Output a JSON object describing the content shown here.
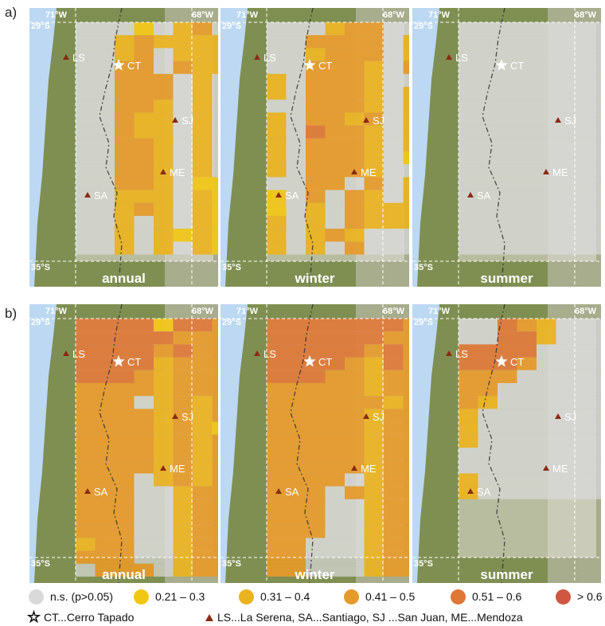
{
  "rows": [
    {
      "label": "a)",
      "panels": [
        {
          "season": "annual",
          "cells": [
            "...2.34...",
            "..343333..",
            "..34.333..",
            "..44.433..",
            "..444.3...",
            "..444.3...",
            "..443.3...",
            "..433.3...",
            "..433.3...",
            "..443.3...",
            "..443.3...",
            "..443.3...",
            "..443.22..",
            "..333.322.",
            "..343.3222",
            "..3.3.3222",
            "..3.323222",
            "..3.3.3222"
          ]
        },
        {
          "season": "winter",
          "cells": [
            "...344....",
            "..4444.3..",
            "..3444.3..",
            "..4443.4..",
            "3.4443....",
            "3.4443.3..",
            "..4443.3..",
            "3.4434.3..",
            "3.5443.3..",
            "3.4443.3..",
            "3.4443.2..",
            "3.4443....",
            "..44.4.3..",
            "2.4.43.3..",
            "2.3.433333",
            "3.3.4333..",
            "3.343.....",
            "3.3.4....."
          ]
        },
        {
          "season": "summer",
          "cells": [
            "..........",
            "..........",
            "..........",
            "..........",
            "..........",
            "..........",
            "..........",
            "..........",
            "..........",
            "..........",
            "..........",
            "..........",
            "..........",
            "..........",
            "..........",
            "..........",
            "..........",
            "......... 2"
          ]
        }
      ]
    },
    {
      "label": "b)",
      "panels": [
        {
          "season": "annual",
          "cells": [
            "5555255444",
            "5555544444",
            "5555454444",
            "5555344444",
            "5554344444",
            "4444344444",
            "444.343444",
            "4444343444",
            "4444343244",
            "4444343444",
            "4444343444",
            "4444343444",
            "444.343444",
            "444..34444",
            "444..34444",
            "444..34444",
            "444..34444",
            "344..34444",
            "444..34444",
            ".444.344444"
          ]
        },
        {
          "season": "winter",
          "cells": [
            "55555554.4",
            "55555544.4",
            "55555454.4",
            "5555435444",
            "5554434444",
            "4444434444",
            "4444443444",
            "4444434444",
            "4444434444",
            "4444434444",
            "4444434444",
            "4444434444",
            "4444.34444",
            "444.434444",
            "444..34444",
            "444..34444",
            "444..34444",
            "44...34444",
            "44...34444",
            "44...34444"
          ]
        },
        {
          "season": "summer",
          "cells": [
            "..543.....",
            "..553.....",
            "5555......",
            "5554......",
            "444.......",
            "44........",
            "43........",
            "3.........",
            "3.........",
            "3.........",
            "..........",
            "..........",
            "3.........",
            "3........."
          ]
        }
      ]
    }
  ],
  "map": {
    "lon_labels": [
      "71°W",
      "68°W"
    ],
    "lat_labels": [
      "29°S",
      "35°S"
    ],
    "star": {
      "code": "CT"
    },
    "cities": [
      {
        "code": "LS"
      },
      {
        "code": "SJ"
      },
      {
        "code": "ME"
      },
      {
        "code": "SA"
      }
    ]
  },
  "colors": {
    "ns": "#d9d9d9",
    "c1": "#f2c713",
    "c2": "#eab320",
    "c3": "#e69a2a",
    "c4": "#de7737",
    "c5": "#cf5640",
    "ocean": "#bcd8f2",
    "land_green": "#7f8f52",
    "triangle": "#8a2b14"
  },
  "legend": {
    "classes": [
      {
        "label": "n.s. (p>0.05)",
        "color": "#d9d9d9"
      },
      {
        "label": "0.21 – 0.3",
        "color": "#f2c713"
      },
      {
        "label": "0.31 – 0.4",
        "color": "#eab320"
      },
      {
        "label": "0.41 – 0.5",
        "color": "#e69a2a"
      },
      {
        "label": "0.51 – 0.6",
        "color": "#de7737"
      },
      {
        "label": "> 0.6",
        "color": "#cf5640"
      }
    ],
    "star_label": "CT...Cerro Tapado",
    "triangle_label": "LS...La Serena, SA...Santiago, SJ ...San Juan, ME...Mendoza"
  }
}
